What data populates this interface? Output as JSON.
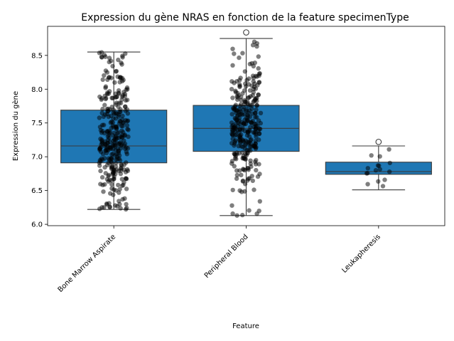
{
  "chart_data": {
    "type": "box",
    "title": "Expression du gène NRAS en fonction de la feature specimenType",
    "xlabel": "Feature",
    "ylabel": "Expression du gène",
    "ylim": [
      5.98,
      8.93
    ],
    "yticks": [
      "6.0",
      "6.5",
      "7.0",
      "7.5",
      "8.0",
      "8.5"
    ],
    "box_color": "#1f77b4",
    "point_color": "#000000",
    "categories": [
      "Bone Marrow Aspirate",
      "Peripheral Blood",
      "Leukapheresis"
    ],
    "boxes": [
      {
        "name": "Bone Marrow Aspirate",
        "whislo": 6.22,
        "q1": 6.91,
        "med": 7.16,
        "q3": 7.69,
        "whishi": 8.55,
        "fliers": []
      },
      {
        "name": "Peripheral Blood",
        "whislo": 6.13,
        "q1": 7.08,
        "med": 7.42,
        "q3": 7.76,
        "whishi": 8.75,
        "fliers": [
          8.84
        ]
      },
      {
        "name": "Leukapheresis",
        "whislo": 6.51,
        "q1": 6.74,
        "med": 6.78,
        "q3": 6.92,
        "whishi": 7.16,
        "fliers": [
          7.22
        ]
      }
    ],
    "strip_counts": [
      330,
      310,
      16
    ]
  }
}
